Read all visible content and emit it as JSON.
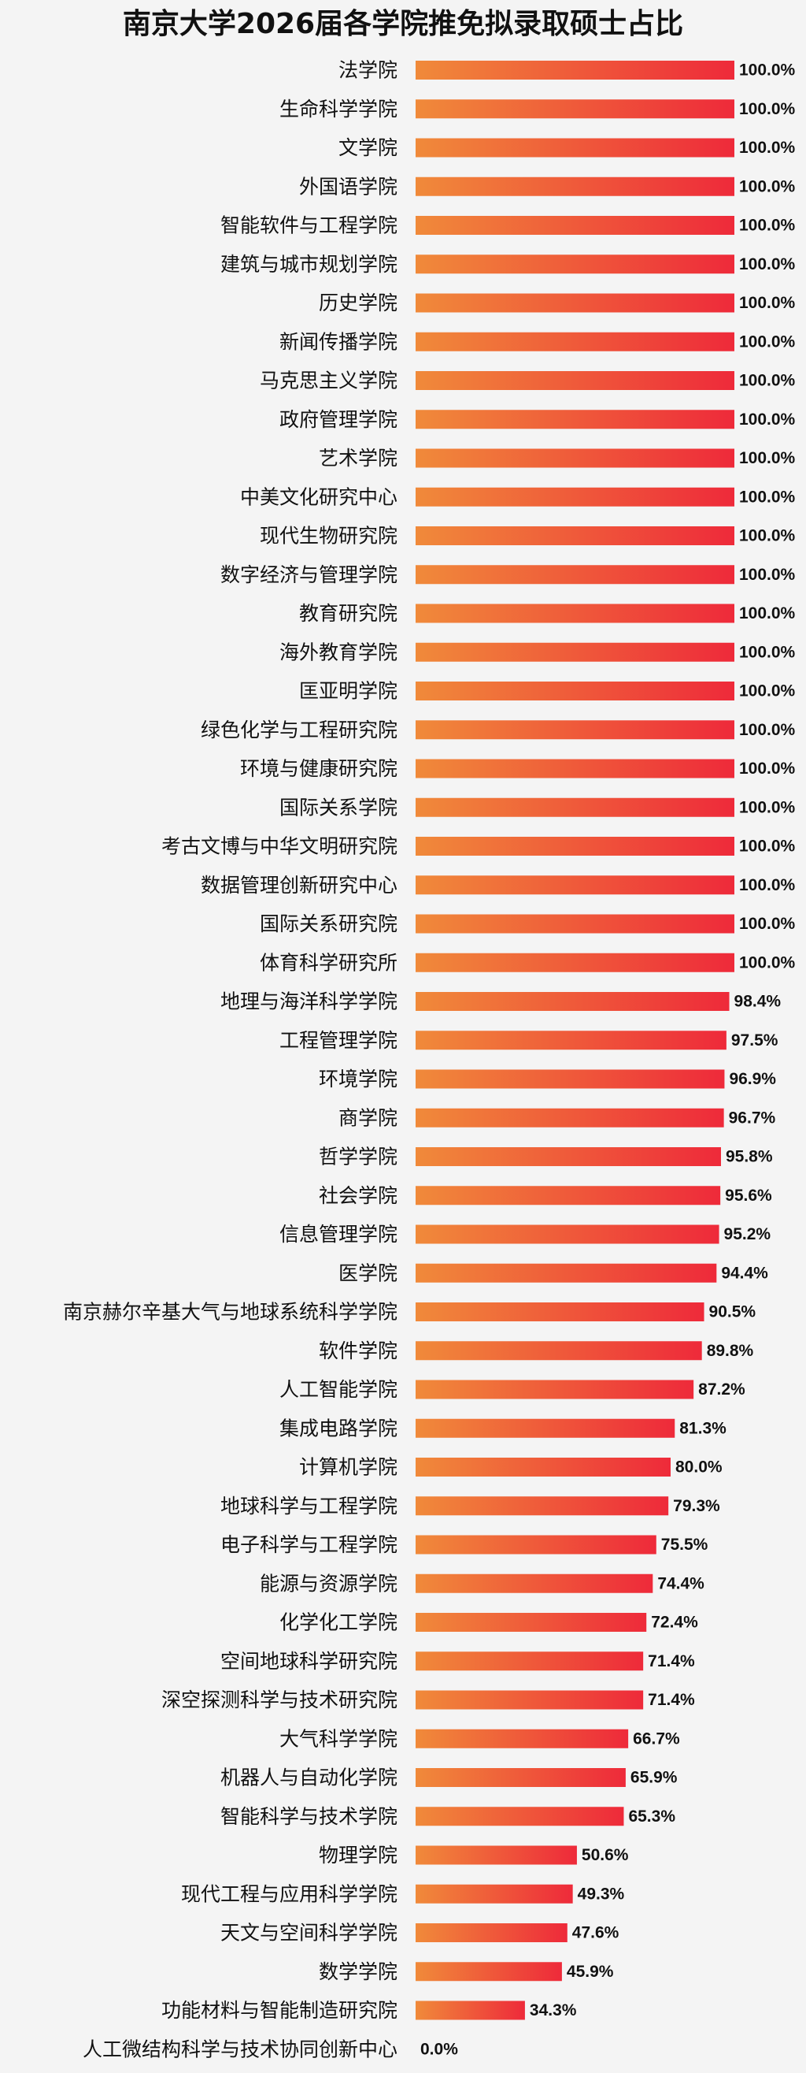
{
  "chart_data": {
    "type": "bar",
    "orientation": "horizontal",
    "title": "南京大学2026届各学院推免拟录取硕士占比",
    "xlabel": "",
    "ylabel": "",
    "xlim": [
      0,
      100
    ],
    "grid": false,
    "legend": "none",
    "value_suffix": "%",
    "colors": {
      "bar_start": "#f08a3a",
      "bar_end": "#ee2a3a"
    },
    "categories": [
      "法学院",
      "生命科学学院",
      "文学院",
      "外国语学院",
      "智能软件与工程学院",
      "建筑与城市规划学院",
      "历史学院",
      "新闻传播学院",
      "马克思主义学院",
      "政府管理学院",
      "艺术学院",
      "中美文化研究中心",
      "现代生物研究院",
      "数字经济与管理学院",
      "教育研究院",
      "海外教育学院",
      "匡亚明学院",
      "绿色化学与工程研究院",
      "环境与健康研究院",
      "国际关系学院",
      "考古文博与中华文明研究院",
      "数据管理创新研究中心",
      "国际关系研究院",
      "体育科学研究所",
      "地理与海洋科学学院",
      "工程管理学院",
      "环境学院",
      "商学院",
      "哲学学院",
      "社会学院",
      "信息管理学院",
      "医学院",
      "南京赫尔辛基大气与地球系统科学学院",
      "软件学院",
      "人工智能学院",
      "集成电路学院",
      "计算机学院",
      "地球科学与工程学院",
      "电子科学与工程学院",
      "能源与资源学院",
      "化学化工学院",
      "空间地球科学研究院",
      "深空探测科学与技术研究院",
      "大气科学学院",
      "机器人与自动化学院",
      "智能科学与技术学院",
      "物理学院",
      "现代工程与应用科学学院",
      "天文与空间科学学院",
      "数学学院",
      "功能材料与智能制造研究院",
      "人工微结构科学与技术协同创新中心"
    ],
    "values": [
      100.0,
      100.0,
      100.0,
      100.0,
      100.0,
      100.0,
      100.0,
      100.0,
      100.0,
      100.0,
      100.0,
      100.0,
      100.0,
      100.0,
      100.0,
      100.0,
      100.0,
      100.0,
      100.0,
      100.0,
      100.0,
      100.0,
      100.0,
      100.0,
      98.4,
      97.5,
      96.9,
      96.7,
      95.8,
      95.6,
      95.2,
      94.4,
      90.5,
      89.8,
      87.2,
      81.3,
      80.0,
      79.3,
      75.5,
      74.4,
      72.4,
      71.4,
      71.4,
      66.7,
      65.9,
      65.3,
      50.6,
      49.3,
      47.6,
      45.9,
      34.3,
      0.0
    ]
  }
}
